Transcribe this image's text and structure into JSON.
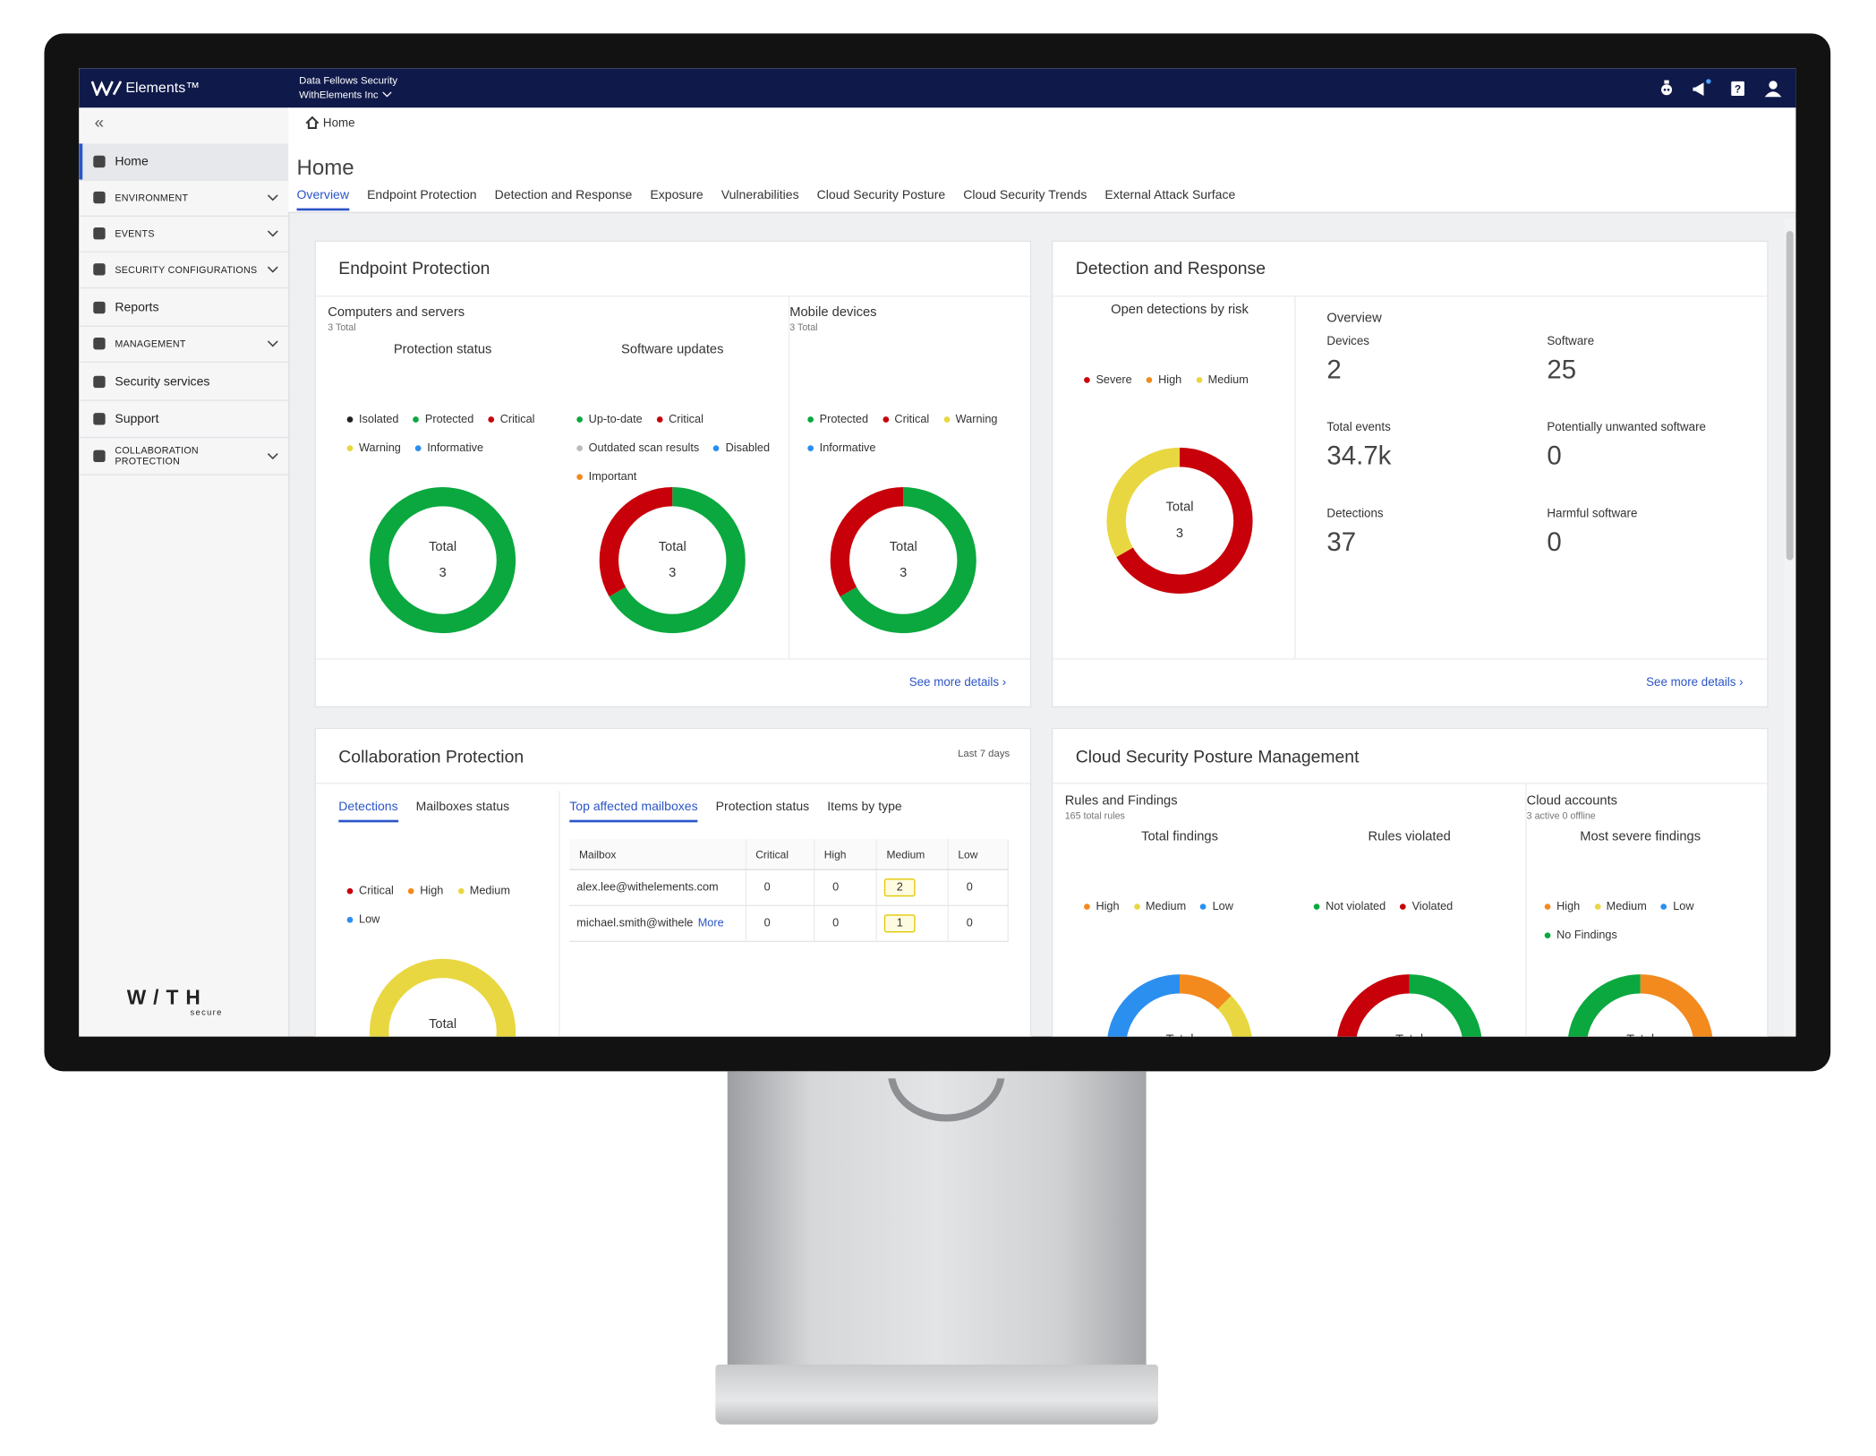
{
  "header": {
    "brand": "Elements™",
    "org": "Data Fellows Security",
    "company": "WithElements Inc"
  },
  "sidebar": {
    "items": [
      "Home",
      "ENVIRONMENT",
      "EVENTS",
      "SECURITY CONFIGURATIONS",
      "Reports",
      "MANAGEMENT",
      "Security services",
      "Support",
      "COLLABORATION PROTECTION"
    ],
    "logo": "W/TH",
    "logo_sub": "secure"
  },
  "breadcrumb": "Home",
  "page_title": "Home",
  "tabs": [
    "Overview",
    "Endpoint Protection",
    "Detection and Response",
    "Exposure",
    "Vulnerabilities",
    "Cloud Security Posture",
    "Cloud Security Trends",
    "External Attack Surface"
  ],
  "endpoint": {
    "title": "Endpoint Protection",
    "groups": [
      {
        "title": "Computers and servers",
        "subtitle": "3 Total"
      },
      {
        "title": "Mobile devices",
        "subtitle": "3 Total"
      }
    ],
    "charts": [
      {
        "title": "Protection status",
        "center_label": "Total",
        "center_value": 3,
        "legend": [
          {
            "name": "Isolated",
            "color": "#222222",
            "value": 0
          },
          {
            "name": "Protected",
            "color": "#0aa83f",
            "value": 3
          },
          {
            "name": "Critical",
            "color": "#c8000a",
            "value": 0
          },
          {
            "name": "Warning",
            "color": "#e8d740",
            "value": 0
          },
          {
            "name": "Informative",
            "color": "#2b8ff0",
            "value": 0
          }
        ]
      },
      {
        "title": "Software updates",
        "center_label": "Total",
        "center_value": 3,
        "legend": [
          {
            "name": "Up-to-date",
            "color": "#0aa83f",
            "value": 2
          },
          {
            "name": "Critical",
            "color": "#c8000a",
            "value": 1
          },
          {
            "name": "Outdated scan results",
            "color": "#bbbbbb",
            "value": 0
          },
          {
            "name": "Disabled",
            "color": "#2b8ff0",
            "value": 0
          },
          {
            "name": "Important",
            "color": "#f28a1e",
            "value": 0
          }
        ]
      },
      {
        "center_label": "Total",
        "center_value": 3,
        "legend": [
          {
            "name": "Protected",
            "color": "#0aa83f",
            "value": 2
          },
          {
            "name": "Critical",
            "color": "#c8000a",
            "value": 1
          },
          {
            "name": "Warning",
            "color": "#e8d740",
            "value": 0
          },
          {
            "name": "Informative",
            "color": "#2b8ff0",
            "value": 0
          }
        ]
      }
    ],
    "link": "See more details"
  },
  "detection": {
    "title": "Detection and Response",
    "charts": [
      {
        "title": "Open detections by risk",
        "center_label": "Total",
        "center_value": 3,
        "legend": [
          {
            "name": "Severe",
            "color": "#c8000a",
            "value": 2
          },
          {
            "name": "High",
            "color": "#f28a1e",
            "value": 0
          },
          {
            "name": "Medium",
            "color": "#e8d740",
            "value": 1
          }
        ]
      }
    ],
    "overview": {
      "title": "Overview",
      "stats": [
        {
          "label": "Devices",
          "value": 2
        },
        {
          "label": "Software",
          "value": 25
        },
        {
          "label": "Total events",
          "value": "34.7k"
        },
        {
          "label": "Potentially unwanted software",
          "value": 0
        },
        {
          "label": "Detections",
          "value": 37
        },
        {
          "label": "Harmful software",
          "value": 0
        }
      ]
    },
    "link": "See more details"
  },
  "collaboration": {
    "title": "Collaboration Protection",
    "period": "Last 7 days",
    "left_tabs": [
      "Detections",
      "Mailboxes status"
    ],
    "right_tabs": [
      "Top affected mailboxes",
      "Protection status",
      "Items by type"
    ],
    "charts": [
      {
        "center_label": "Total",
        "legend": [
          {
            "name": "Critical",
            "color": "#c8000a",
            "value": 0
          },
          {
            "name": "High",
            "color": "#f28a1e",
            "value": 0
          },
          {
            "name": "Medium",
            "color": "#e8d740",
            "value": 3
          },
          {
            "name": "Low",
            "color": "#2b8ff0",
            "value": 0
          }
        ]
      }
    ],
    "table": {
      "columns": [
        "Mailbox",
        "Critical",
        "High",
        "Medium",
        "Low"
      ],
      "rows": [
        [
          "alex.lee@withelements.com",
          0,
          0,
          2,
          0
        ],
        [
          "michael.smith@withele",
          0,
          0,
          1,
          0
        ]
      ],
      "more": "More"
    }
  },
  "cloud": {
    "title": "Cloud Security Posture Management",
    "groups": [
      {
        "title": "Rules and Findings",
        "subtitle": "165 total rules"
      },
      {
        "title": "Cloud accounts",
        "subtitle": "3 active 0 offline"
      }
    ],
    "charts": [
      {
        "title": "Total findings",
        "center_label": "Total",
        "legend": [
          {
            "name": "High",
            "color": "#f28a1e",
            "value": 1
          },
          {
            "name": "Medium",
            "color": "#e8d740",
            "value": 3
          },
          {
            "name": "Low",
            "color": "#2b8ff0",
            "value": 4
          }
        ]
      },
      {
        "title": "Rules violated",
        "center_label": "Total",
        "legend": [
          {
            "name": "Not violated",
            "color": "#0aa83f",
            "value": 1
          },
          {
            "name": "Violated",
            "color": "#c8000a",
            "value": 1
          }
        ]
      },
      {
        "title": "Most severe findings",
        "center_label": "Total",
        "legend": [
          {
            "name": "High",
            "color": "#f28a1e",
            "value": 1
          },
          {
            "name": "Medium",
            "color": "#e8d740",
            "value": 0
          },
          {
            "name": "Low",
            "color": "#2b8ff0",
            "value": 0
          },
          {
            "name": "No Findings",
            "color": "#0aa83f",
            "value": 1
          }
        ]
      }
    ]
  }
}
